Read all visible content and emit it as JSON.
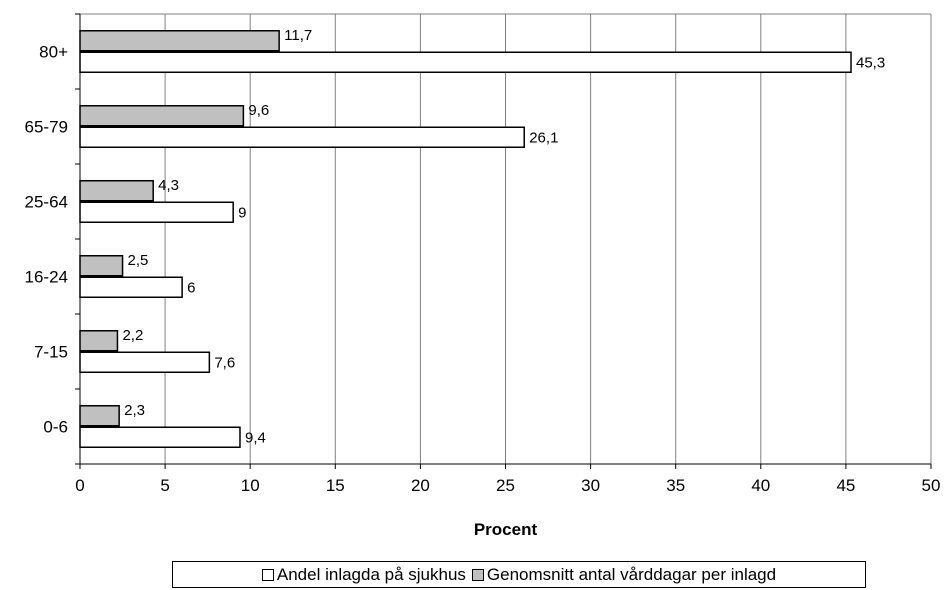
{
  "colors": {
    "series_hospital": "#ffffff",
    "series_days": "#c0c0c0",
    "bar_border": "#000000",
    "grid": "#808080",
    "axis": "#000000"
  },
  "chart_data": {
    "type": "bar",
    "orientation": "horizontal",
    "categories": [
      "0-6",
      "7-15",
      "16-24",
      "25-64",
      "65-79",
      "80+"
    ],
    "series": [
      {
        "name": "Andel inlagda på sjukhus",
        "values": [
          9.4,
          7.6,
          6,
          9,
          26.1,
          45.3
        ],
        "labels": [
          "9,4",
          "7,6",
          "6",
          "9",
          "26,1",
          "45,3"
        ]
      },
      {
        "name": "Genomsnitt antal vårddagar per inlagd",
        "values": [
          2.3,
          2.2,
          2.5,
          4.3,
          9.6,
          11.7
        ],
        "labels": [
          "2,3",
          "2,2",
          "2,5",
          "4,3",
          "9,6",
          "11,7"
        ]
      }
    ],
    "xlabel": "Procent",
    "ylabel": "",
    "xlim": [
      0,
      50
    ],
    "xticks": [
      0,
      5,
      10,
      15,
      20,
      25,
      30,
      35,
      40,
      45,
      50
    ],
    "grid": "vertical",
    "legend": "bottom"
  }
}
